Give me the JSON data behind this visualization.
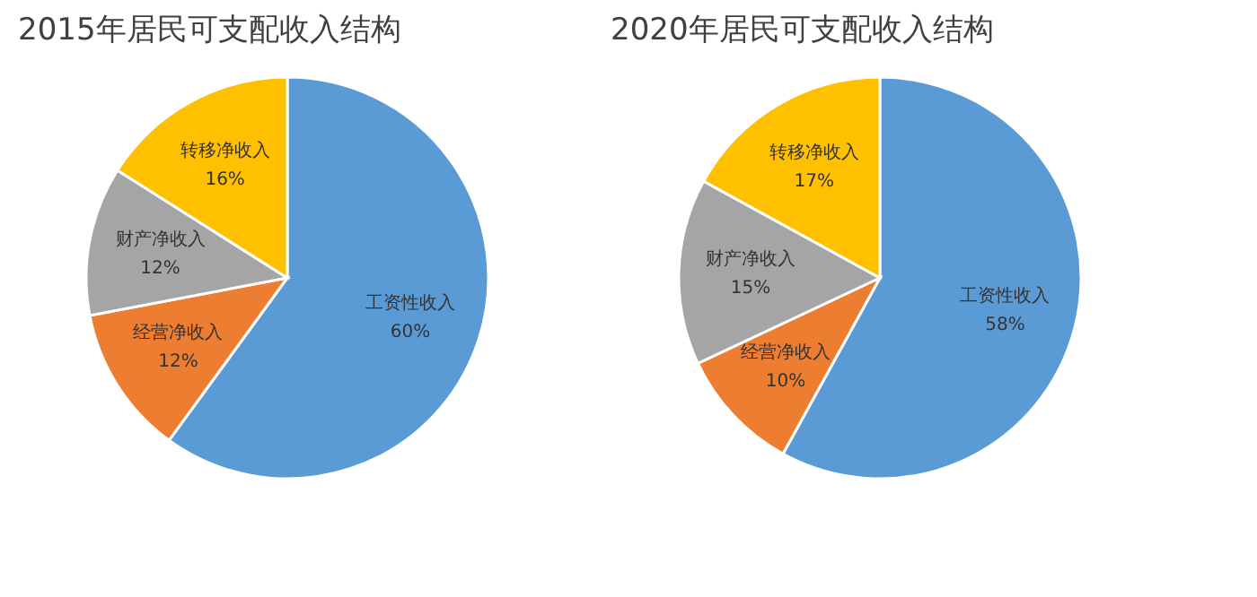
{
  "chart_data": [
    {
      "type": "pie",
      "title": "2015年居民可支配收入结构",
      "categories": [
        "工资性收入",
        "经营净收入",
        "财产净收入",
        "转移净收入"
      ],
      "values": [
        60,
        12,
        12,
        16
      ],
      "value_labels": [
        "60%",
        "12%",
        "12%",
        "16%"
      ],
      "colors": [
        "#5b9bd5",
        "#ed7d31",
        "#a5a5a5",
        "#ffc000"
      ],
      "legend": false
    },
    {
      "type": "pie",
      "title": "2020年居民可支配收入结构",
      "categories": [
        "工资性收入",
        "经营净收入",
        "财产净收入",
        "转移净收入"
      ],
      "values": [
        58,
        10,
        15,
        17
      ],
      "value_labels": [
        "58%",
        "10%",
        "15%",
        "17%"
      ],
      "colors": [
        "#5b9bd5",
        "#ed7d31",
        "#a5a5a5",
        "#ffc000"
      ],
      "legend": false
    }
  ]
}
